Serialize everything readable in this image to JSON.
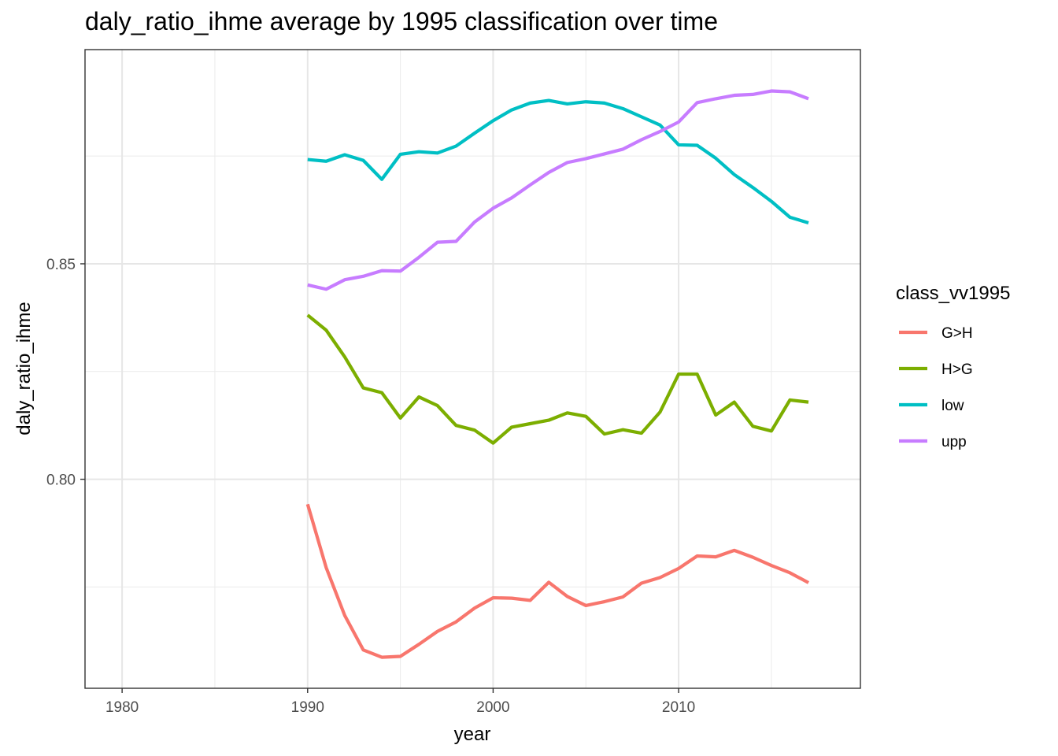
{
  "chart_data": {
    "type": "line",
    "title": "daly_ratio_ihme average by 1995 classification over time",
    "xlabel": "year",
    "ylabel": "daly_ratio_ihme",
    "xlim": [
      1978,
      2019.8
    ],
    "ylim": [
      0.7515,
      0.8997
    ],
    "x_ticks": [
      1980,
      1990,
      2000,
      2010
    ],
    "x_tick_labels": [
      "1980",
      "1990",
      "2000",
      "2010"
    ],
    "y_ticks": [
      0.8,
      0.85
    ],
    "y_tick_labels": [
      "0.80",
      "0.85"
    ],
    "grid": true,
    "legend": {
      "title": "class_vv1995",
      "position": "right"
    },
    "x": [
      1990,
      1991,
      1992,
      1993,
      1994,
      1995,
      1996,
      1997,
      1998,
      1999,
      2000,
      2001,
      2002,
      2003,
      2004,
      2005,
      2006,
      2007,
      2008,
      2009,
      2010,
      2011,
      2012,
      2013,
      2014,
      2015,
      2016,
      2017
    ],
    "series": [
      {
        "name": "G>H",
        "color": "#F8766D",
        "values": [
          0.7942,
          0.7795,
          0.7684,
          0.7604,
          0.7587,
          0.7589,
          0.7617,
          0.7647,
          0.7669,
          0.7701,
          0.7725,
          0.7724,
          0.7719,
          0.7761,
          0.7728,
          0.7707,
          0.7716,
          0.7727,
          0.7759,
          0.7772,
          0.7793,
          0.7822,
          0.782,
          0.7835,
          0.7819,
          0.78,
          0.7783,
          0.776
        ]
      },
      {
        "name": "H>G",
        "color": "#7CAE00",
        "values": [
          0.8381,
          0.8346,
          0.8284,
          0.8212,
          0.8201,
          0.8142,
          0.8191,
          0.8171,
          0.8125,
          0.8114,
          0.8084,
          0.8121,
          0.8129,
          0.8137,
          0.8154,
          0.8146,
          0.8105,
          0.8115,
          0.8107,
          0.8156,
          0.8244,
          0.8244,
          0.8149,
          0.8179,
          0.8123,
          0.8112,
          0.8184,
          0.8179
        ]
      },
      {
        "name": "low",
        "color": "#00BFC4",
        "values": [
          0.8742,
          0.8738,
          0.8753,
          0.874,
          0.8696,
          0.8754,
          0.876,
          0.8757,
          0.8773,
          0.8803,
          0.8832,
          0.8857,
          0.8873,
          0.8879,
          0.8871,
          0.8876,
          0.8873,
          0.886,
          0.8841,
          0.8822,
          0.8776,
          0.8775,
          0.8745,
          0.8707,
          0.8677,
          0.8645,
          0.8608,
          0.8595
        ]
      },
      {
        "name": "upp",
        "color": "#C77CFF",
        "values": [
          0.8451,
          0.8441,
          0.8463,
          0.8471,
          0.8484,
          0.8483,
          0.8515,
          0.855,
          0.8552,
          0.8597,
          0.8629,
          0.8653,
          0.8683,
          0.8712,
          0.8735,
          0.8744,
          0.8755,
          0.8766,
          0.8788,
          0.8807,
          0.8829,
          0.8874,
          0.8883,
          0.8891,
          0.8893,
          0.8901,
          0.8899,
          0.8883
        ]
      }
    ]
  }
}
